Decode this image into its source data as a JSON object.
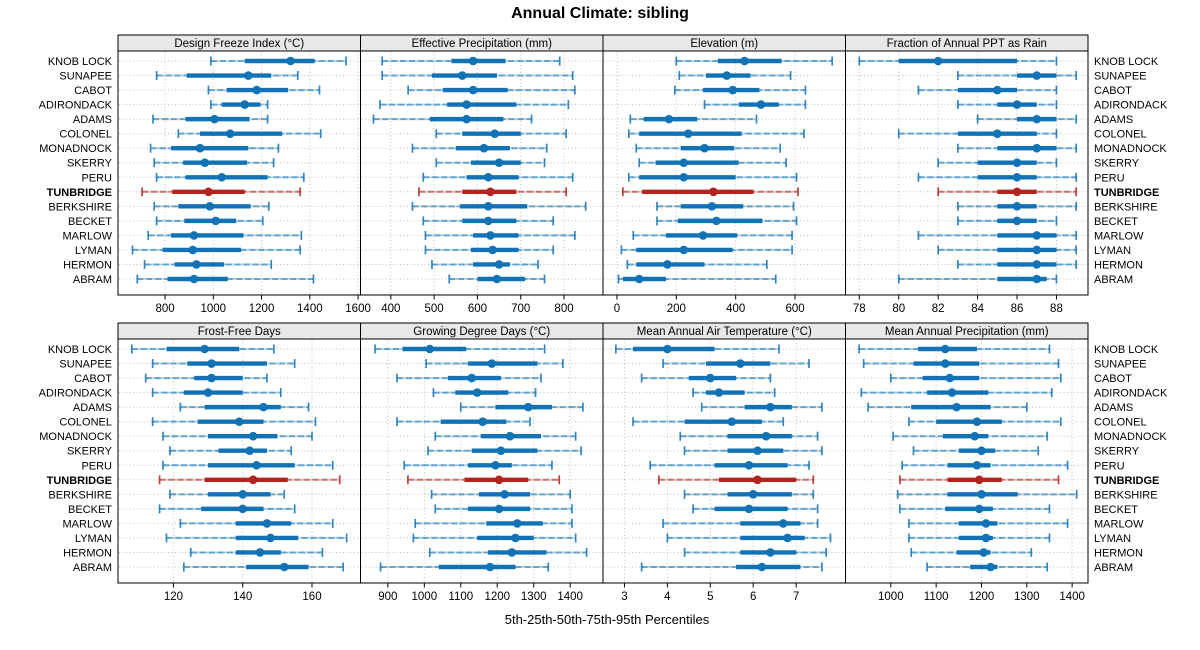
{
  "title": "Annual Climate: sibling",
  "footer": "5th-25th-50th-75th-95th Percentiles",
  "highlight_site": "TUNBRIDGE",
  "sites": [
    "KNOB LOCK",
    "SUNAPEE",
    "CABOT",
    "ADIRONDACK",
    "ADAMS",
    "COLONEL",
    "MONADNOCK",
    "SKERRY",
    "PERU",
    "TUNBRIDGE",
    "BERKSHIRE",
    "BECKET",
    "MARLOW",
    "LYMAN",
    "HERMON",
    "ABRAM"
  ],
  "colors": {
    "site": "#1272B6",
    "highlight": "#B2241E",
    "strip_bg": "#E8E8E8",
    "grid": "#BFBFBF",
    "border": "#000000",
    "background": "#FFFFFF"
  },
  "chart_data": {
    "type": "dotplot",
    "subtype": "percentile-intervals (5th-25th-50th-75th-95th)",
    "title": "Annual Climate: sibling",
    "xlabel": "5th-25th-50th-75th-95th Percentiles",
    "grid": "dotted",
    "layout": "2 rows x 4 columns, shared site categories left and right",
    "percentile_labels": [
      "5th",
      "25th",
      "50th",
      "75th",
      "95th"
    ],
    "categories": [
      "KNOB LOCK",
      "SUNAPEE",
      "CABOT",
      "ADIRONDACK",
      "ADAMS",
      "COLONEL",
      "MONADNOCK",
      "SKERRY",
      "PERU",
      "TUNBRIDGE",
      "BERKSHIRE",
      "BECKET",
      "MARLOW",
      "LYMAN",
      "HERMON",
      "ABRAM"
    ],
    "panels": [
      {
        "title": "Design Freeze Index (°C)",
        "ticks": [
          800,
          1000,
          1200,
          1400,
          1600
        ],
        "xlim": [
          605,
          1610
        ],
        "values": [
          [
            990,
            1130,
            1320,
            1420,
            1550
          ],
          [
            765,
            890,
            1145,
            1240,
            1350
          ],
          [
            980,
            1055,
            1180,
            1310,
            1440
          ],
          [
            990,
            1035,
            1130,
            1195,
            1225
          ],
          [
            750,
            885,
            1005,
            1150,
            1225
          ],
          [
            855,
            945,
            1070,
            1285,
            1445
          ],
          [
            740,
            825,
            945,
            1145,
            1270
          ],
          [
            755,
            875,
            965,
            1140,
            1250
          ],
          [
            765,
            885,
            1035,
            1225,
            1375
          ],
          [
            705,
            830,
            980,
            1130,
            1360
          ],
          [
            755,
            855,
            985,
            1155,
            1230
          ],
          [
            765,
            880,
            1010,
            1095,
            1205
          ],
          [
            730,
            825,
            920,
            1125,
            1365
          ],
          [
            665,
            790,
            915,
            1115,
            1360
          ],
          [
            715,
            840,
            930,
            1045,
            1240
          ],
          [
            685,
            810,
            920,
            1060,
            1415
          ]
        ]
      },
      {
        "title": "Effective Precipitation (mm)",
        "ticks": [
          400,
          500,
          600,
          700,
          800
        ],
        "xlim": [
          330,
          890
        ],
        "values": [
          [
            380,
            540,
            590,
            665,
            790
          ],
          [
            380,
            495,
            565,
            645,
            820
          ],
          [
            440,
            520,
            590,
            670,
            825
          ],
          [
            375,
            530,
            575,
            690,
            810
          ],
          [
            360,
            490,
            575,
            660,
            725
          ],
          [
            505,
            565,
            640,
            700,
            805
          ],
          [
            450,
            550,
            615,
            675,
            760
          ],
          [
            505,
            585,
            650,
            700,
            755
          ],
          [
            475,
            575,
            625,
            695,
            820
          ],
          [
            465,
            565,
            630,
            690,
            805
          ],
          [
            450,
            560,
            625,
            715,
            850
          ],
          [
            475,
            565,
            625,
            690,
            775
          ],
          [
            480,
            590,
            630,
            695,
            825
          ],
          [
            480,
            585,
            635,
            695,
            775
          ],
          [
            495,
            590,
            650,
            675,
            740
          ],
          [
            535,
            600,
            645,
            710,
            755
          ]
        ]
      },
      {
        "title": "Elevation (m)",
        "ticks": [
          0,
          200,
          400,
          600
        ],
        "xlim": [
          -47,
          770
        ],
        "values": [
          [
            200,
            340,
            430,
            555,
            725
          ],
          [
            210,
            300,
            370,
            450,
            585
          ],
          [
            195,
            290,
            390,
            480,
            635
          ],
          [
            295,
            410,
            485,
            545,
            635
          ],
          [
            45,
            90,
            175,
            270,
            470
          ],
          [
            40,
            75,
            240,
            420,
            630
          ],
          [
            65,
            215,
            295,
            395,
            550
          ],
          [
            75,
            130,
            225,
            410,
            570
          ],
          [
            40,
            75,
            225,
            400,
            605
          ],
          [
            20,
            85,
            325,
            460,
            610
          ],
          [
            135,
            215,
            320,
            425,
            595
          ],
          [
            135,
            205,
            335,
            490,
            605
          ],
          [
            55,
            165,
            290,
            405,
            590
          ],
          [
            15,
            65,
            225,
            390,
            590
          ],
          [
            35,
            65,
            170,
            295,
            505
          ],
          [
            5,
            20,
            75,
            165,
            535
          ]
        ]
      },
      {
        "title": "Fraction of Annual PPT as Rain",
        "ticks": [
          78,
          80,
          82,
          84,
          86,
          88
        ],
        "xlim": [
          77.3,
          89.6
        ],
        "values": [
          [
            78,
            80,
            82,
            86,
            88
          ],
          [
            83,
            86,
            87,
            88,
            89
          ],
          [
            81,
            83,
            85,
            86,
            88
          ],
          [
            83,
            85,
            86,
            87,
            88
          ],
          [
            84,
            86,
            87,
            88,
            89
          ],
          [
            80,
            83,
            85,
            87,
            88
          ],
          [
            83,
            85,
            87,
            88,
            89
          ],
          [
            82,
            84,
            86,
            87,
            88
          ],
          [
            81,
            84,
            86,
            87,
            89
          ],
          [
            82,
            85,
            86,
            87,
            89
          ],
          [
            83,
            85,
            86,
            87,
            89
          ],
          [
            83,
            85,
            86,
            87,
            88
          ],
          [
            81,
            85,
            87,
            88,
            89
          ],
          [
            82,
            85,
            87,
            88,
            89
          ],
          [
            83,
            85,
            87,
            88,
            89
          ],
          [
            80,
            85,
            87,
            87.5,
            88
          ]
        ]
      },
      {
        "title": "Frost-Free Days",
        "ticks": [
          120,
          140,
          160
        ],
        "xlim": [
          104,
          174
        ],
        "values": [
          [
            108,
            118,
            129,
            139,
            149
          ],
          [
            114,
            124,
            131,
            147,
            155
          ],
          [
            112,
            126,
            131,
            140,
            147
          ],
          [
            114,
            123,
            130,
            140,
            151
          ],
          [
            122,
            129,
            146,
            151,
            159
          ],
          [
            114,
            127,
            139,
            146,
            161
          ],
          [
            117,
            130,
            143,
            150,
            160
          ],
          [
            119,
            133,
            142,
            147,
            154
          ],
          [
            117,
            130,
            144,
            155,
            166
          ],
          [
            116,
            129,
            143,
            153,
            168
          ],
          [
            119,
            130,
            140,
            148,
            152
          ],
          [
            116,
            128,
            140,
            146,
            155
          ],
          [
            122,
            138,
            147,
            154,
            166
          ],
          [
            118,
            138,
            148,
            156,
            170
          ],
          [
            125,
            138,
            145,
            151,
            163
          ],
          [
            123,
            141,
            152,
            159,
            169
          ]
        ]
      },
      {
        "title": "Growing Degree Days (°C)",
        "ticks": [
          900,
          1000,
          1100,
          1200,
          1300,
          1400
        ],
        "xlim": [
          825,
          1490
        ],
        "values": [
          [
            865,
            940,
            1015,
            1115,
            1330
          ],
          [
            1005,
            1120,
            1185,
            1310,
            1380
          ],
          [
            925,
            1065,
            1130,
            1210,
            1320
          ],
          [
            1025,
            1085,
            1145,
            1230,
            1305
          ],
          [
            1100,
            1195,
            1285,
            1350,
            1435
          ],
          [
            925,
            1045,
            1160,
            1225,
            1290
          ],
          [
            1030,
            1155,
            1235,
            1320,
            1415
          ],
          [
            1010,
            1130,
            1210,
            1310,
            1430
          ],
          [
            945,
            1120,
            1195,
            1240,
            1350
          ],
          [
            955,
            1110,
            1205,
            1285,
            1370
          ],
          [
            1020,
            1150,
            1220,
            1290,
            1400
          ],
          [
            1030,
            1120,
            1205,
            1290,
            1405
          ],
          [
            975,
            1170,
            1255,
            1325,
            1405
          ],
          [
            970,
            1145,
            1250,
            1300,
            1415
          ],
          [
            1015,
            1175,
            1240,
            1335,
            1445
          ],
          [
            880,
            1040,
            1180,
            1250,
            1340
          ]
        ]
      },
      {
        "title": "Mean Annual Air Temperature (°C)",
        "ticks": [
          3,
          4,
          5,
          6,
          7
        ],
        "xlim": [
          2.5,
          8.15
        ],
        "values": [
          [
            2.8,
            3.2,
            4.0,
            5.1,
            6.6
          ],
          [
            3.9,
            4.9,
            5.7,
            6.4,
            7.3
          ],
          [
            3.4,
            4.5,
            5.0,
            5.6,
            6.4
          ],
          [
            4.6,
            4.9,
            5.2,
            5.8,
            6.5
          ],
          [
            4.8,
            5.8,
            6.4,
            6.9,
            7.6
          ],
          [
            3.2,
            4.4,
            5.5,
            6.2,
            6.7
          ],
          [
            4.3,
            5.4,
            6.3,
            6.9,
            7.5
          ],
          [
            4.4,
            5.4,
            6.1,
            6.7,
            7.6
          ],
          [
            3.6,
            5.1,
            5.9,
            6.8,
            7.3
          ],
          [
            3.8,
            5.2,
            6.1,
            7.0,
            7.4
          ],
          [
            4.4,
            5.4,
            6.0,
            6.9,
            7.4
          ],
          [
            4.6,
            5.1,
            5.9,
            6.8,
            7.5
          ],
          [
            3.9,
            5.7,
            6.7,
            7.1,
            7.5
          ],
          [
            4.0,
            5.7,
            6.8,
            7.2,
            7.8
          ],
          [
            4.4,
            5.7,
            6.4,
            7.0,
            7.7
          ],
          [
            3.4,
            5.6,
            6.2,
            7.1,
            7.6
          ]
        ]
      },
      {
        "title": "Mean Annual Precipitation (mm)",
        "ticks": [
          1000,
          1100,
          1200,
          1300,
          1400
        ],
        "xlim": [
          900,
          1435
        ],
        "values": [
          [
            930,
            1060,
            1120,
            1190,
            1350
          ],
          [
            940,
            1050,
            1120,
            1195,
            1370
          ],
          [
            1000,
            1070,
            1130,
            1195,
            1375
          ],
          [
            935,
            1080,
            1135,
            1215,
            1355
          ],
          [
            950,
            1045,
            1145,
            1220,
            1300
          ],
          [
            1040,
            1100,
            1190,
            1245,
            1375
          ],
          [
            1005,
            1115,
            1185,
            1215,
            1345
          ],
          [
            1050,
            1150,
            1200,
            1230,
            1325
          ],
          [
            1025,
            1125,
            1190,
            1220,
            1390
          ],
          [
            1020,
            1125,
            1195,
            1245,
            1370
          ],
          [
            1015,
            1125,
            1200,
            1280,
            1410
          ],
          [
            1020,
            1120,
            1195,
            1225,
            1350
          ],
          [
            1040,
            1150,
            1210,
            1235,
            1390
          ],
          [
            1040,
            1150,
            1210,
            1225,
            1350
          ],
          [
            1045,
            1145,
            1205,
            1220,
            1310
          ],
          [
            1080,
            1175,
            1220,
            1235,
            1345
          ]
        ]
      }
    ]
  }
}
